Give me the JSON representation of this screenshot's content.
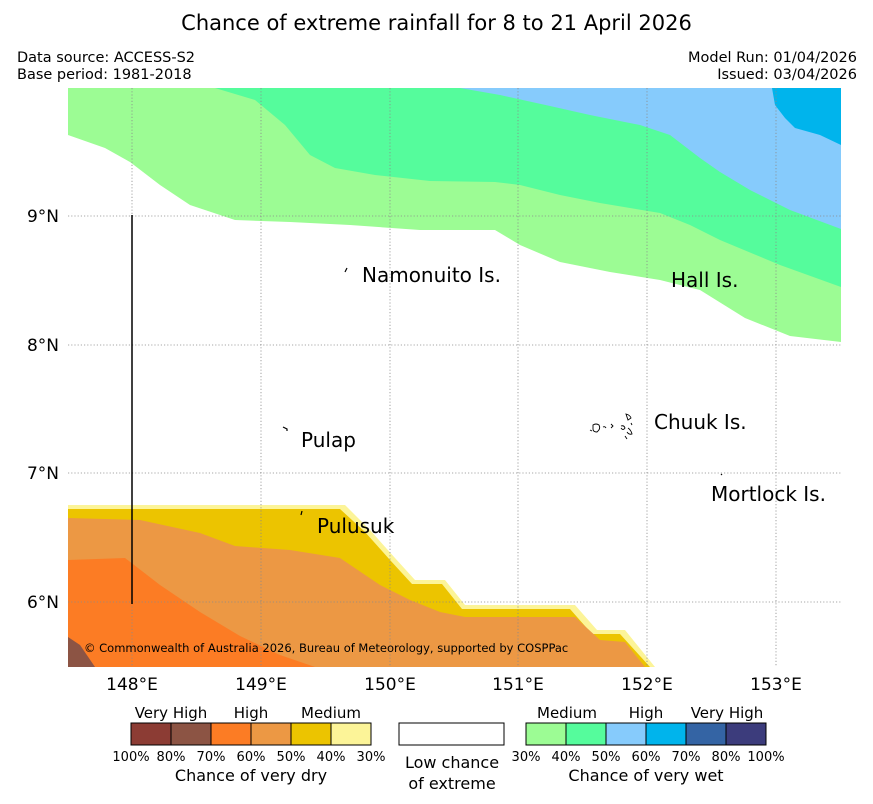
{
  "title": "Chance of extreme rainfall for 8 to 21 April 2026",
  "data_source": "Data source: ACCESS-S2",
  "base_period": "Base period: 1981-2018",
  "model_run": "Model Run: 01/04/2026",
  "issued": "Issued: 03/04/2026",
  "map": {
    "lat_labels": [
      "9°N",
      "8°N",
      "7°N",
      "6°N"
    ],
    "lon_labels": [
      "148°E",
      "149°E",
      "150°E",
      "151°E",
      "152°E",
      "153°E"
    ],
    "islands": {
      "namonuito": "Namonuito Is.",
      "hall": "Hall Is.",
      "pulap": "Pulap",
      "chuuk": "Chuuk Is.",
      "mortlock": "Mortlock Is.",
      "pulusuk": "Pulusuk"
    },
    "copyright": "© Commonwealth of Australia 2026, Bureau of Meteorology, supported by COSPPac",
    "colors": {
      "wet_30": "#9cfc94",
      "wet_40": "#55fc9c",
      "wet_50": "#86cbfc",
      "wet_60": "#00b4ec",
      "dry_30": "#fcf498",
      "dry_40": "#ecc400",
      "dry_50": "#ec9844",
      "dry_60": "#fc7c24",
      "dry_70": "#8c5444"
    }
  },
  "legend": {
    "dry": {
      "very_high": "Very High",
      "high": "High",
      "medium": "Medium",
      "pcts": [
        "100%",
        "80%",
        "70%",
        "60%",
        "50%",
        "40%",
        "30%"
      ],
      "caption": "Chance of very dry",
      "colors": [
        "#8c3c34",
        "#8c5444",
        "#fc7c24",
        "#ec9844",
        "#ecc400",
        "#fcf498"
      ]
    },
    "low_chance_line1": "Low chance",
    "low_chance_line2": "of extreme",
    "wet": {
      "medium": "Medium",
      "high": "High",
      "very_high": "Very High",
      "pcts": [
        "30%",
        "40%",
        "50%",
        "60%",
        "70%",
        "80%",
        "100%"
      ],
      "caption": "Chance of very wet",
      "colors": [
        "#9cfc94",
        "#55fc9c",
        "#86cbfc",
        "#00b4ec",
        "#3464a4",
        "#3c3c7c"
      ]
    }
  }
}
